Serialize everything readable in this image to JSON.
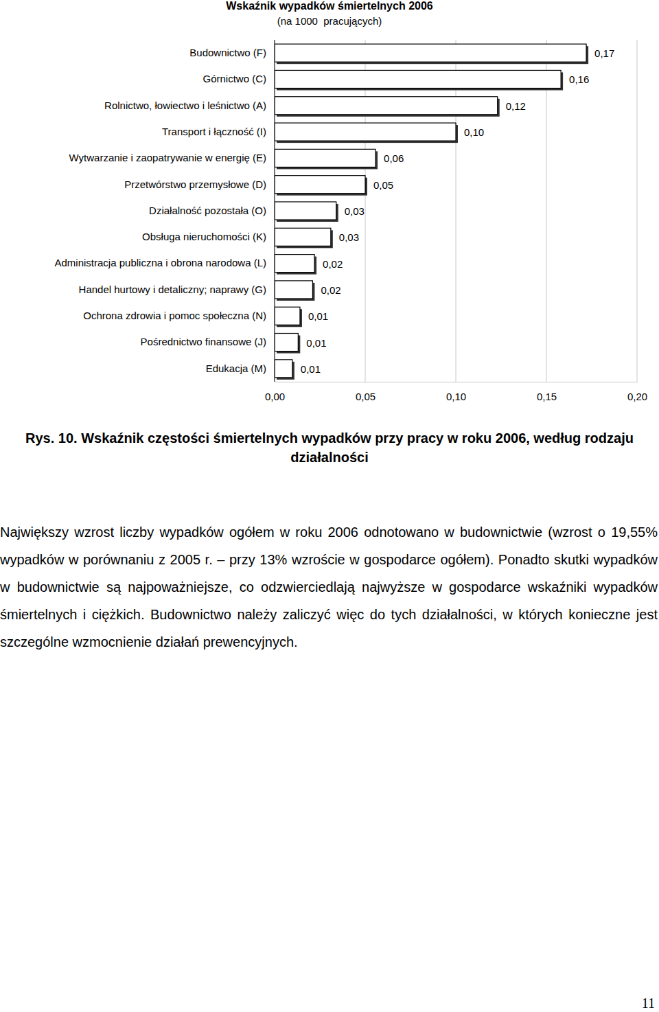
{
  "chart_data": {
    "type": "bar",
    "orientation": "horizontal",
    "title": "Wskaźnik wypadków śmiertelnych 2006",
    "subtitle": "(na 1000  pracujących)",
    "categories": [
      "Budownictwo (F)",
      "Górnictwo (C)",
      "Rolnictwo, łowiectwo i leśnictwo (A)",
      "Transport i łączność (I)",
      "Wytwarzanie i zaopatrywanie w energię (E)",
      "Przetwórstwo przemysłowe (D)",
      "Działalność pozostała (O)",
      "Obsługa nieruchomości (K)",
      "Administracja publiczna i obrona narodowa (L)",
      "Handel hurtowy i detaliczny; naprawy (G)",
      "Ochrona zdrowia i pomoc społeczna (N)",
      "Pośrednictwo finansowe (J)",
      "Edukacja (M)"
    ],
    "values": [
      0.172,
      0.158,
      0.123,
      0.1,
      0.0557,
      0.05,
      0.034,
      0.031,
      0.022,
      0.021,
      0.014,
      0.013,
      0.0098
    ],
    "value_labels": [
      "0,17",
      "0,16",
      "0,12",
      "0,10",
      "0,06",
      "0,05",
      "0,03",
      "0,03",
      "0,02",
      "0,02",
      "0,01",
      "0,01",
      "0,01"
    ],
    "data_labels": true,
    "color": "#ffffff",
    "xlim": [
      0,
      0.2
    ],
    "xticks": [
      {
        "value": 0,
        "label": "0,00"
      },
      {
        "value": 0.05,
        "label": "0,05"
      },
      {
        "value": 0.1,
        "label": "0,10"
      },
      {
        "value": 0.15,
        "label": "0,15"
      },
      {
        "value": 0.2,
        "label": "0,20"
      }
    ],
    "grid": true
  },
  "caption": "Rys. 10. Wskaźnik częstości śmiertelnych wypadków przy pracy w roku 2006, według rodzaju działalności",
  "paragraph": "Największy wzrost liczby wypadków ogółem w roku 2006 odnotowano w budownictwie (wzrost o 19,55% wypadków w porównaniu z 2005 r. – przy 13% wzroście w gospodarce ogółem). Ponadto skutki wypadków w budownictwie są najpoważniejsze, co odzwierciedlają najwyższe w gospodarce wskaźniki wypadków śmiertelnych i ciężkich. Budownictwo należy zaliczyć więc do tych działalności, w których konieczne jest szczególne wzmocnienie działań prewencyjnych.",
  "page_number": "11"
}
